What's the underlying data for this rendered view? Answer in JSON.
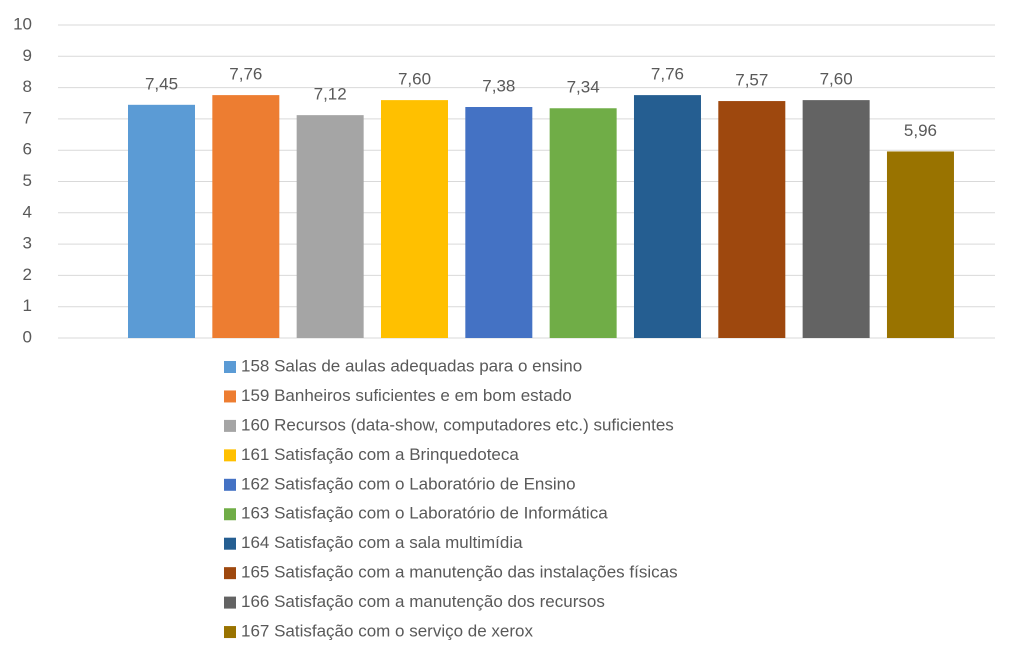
{
  "chart_data": {
    "type": "bar",
    "categories": [
      null
    ],
    "series": [
      {
        "name": "158 Salas de aulas adequadas para o ensino",
        "color": "#5b9bd5",
        "values": [
          7.45
        ],
        "value_labels": [
          "7,45"
        ]
      },
      {
        "name": "159 Banheiros suficientes e em bom estado",
        "color": "#ed7d31",
        "values": [
          7.76
        ],
        "value_labels": [
          "7,76"
        ]
      },
      {
        "name": "160 Recursos (data-show, computadores etc.) suficientes",
        "color": "#a5a5a5",
        "values": [
          7.12
        ],
        "value_labels": [
          "7,12"
        ]
      },
      {
        "name": "161 Satisfação com a Brinquedoteca",
        "color": "#ffc000",
        "values": [
          7.6
        ],
        "value_labels": [
          "7,60"
        ]
      },
      {
        "name": "162 Satisfação com o Laboratório de Ensino",
        "color": "#4472c4",
        "values": [
          7.38
        ],
        "value_labels": [
          "7,38"
        ]
      },
      {
        "name": "163 Satisfação com o Laboratório de Informática",
        "color": "#70ad47",
        "values": [
          7.34
        ],
        "value_labels": [
          "7,34"
        ]
      },
      {
        "name": "164 Satisfação com a sala multimídia",
        "color": "#255e91",
        "values": [
          7.76
        ],
        "value_labels": [
          "7,76"
        ]
      },
      {
        "name": "165 Satisfação com a manutenção das instalações físicas",
        "color": "#9e480e",
        "values": [
          7.57
        ],
        "value_labels": [
          "7,57"
        ]
      },
      {
        "name": "166 Satisfação com a manutenção dos recursos",
        "color": "#636363",
        "values": [
          7.6
        ],
        "value_labels": [
          "7,60"
        ]
      },
      {
        "name": "167 Satisfação com o serviço de xerox",
        "color": "#997300",
        "values": [
          5.96
        ],
        "value_labels": [
          "5,96"
        ]
      }
    ],
    "ylim": [
      0,
      10
    ],
    "yticks": [
      0,
      1,
      2,
      3,
      4,
      5,
      6,
      7,
      8,
      9,
      10
    ],
    "grid": true,
    "legend": "bottom"
  }
}
